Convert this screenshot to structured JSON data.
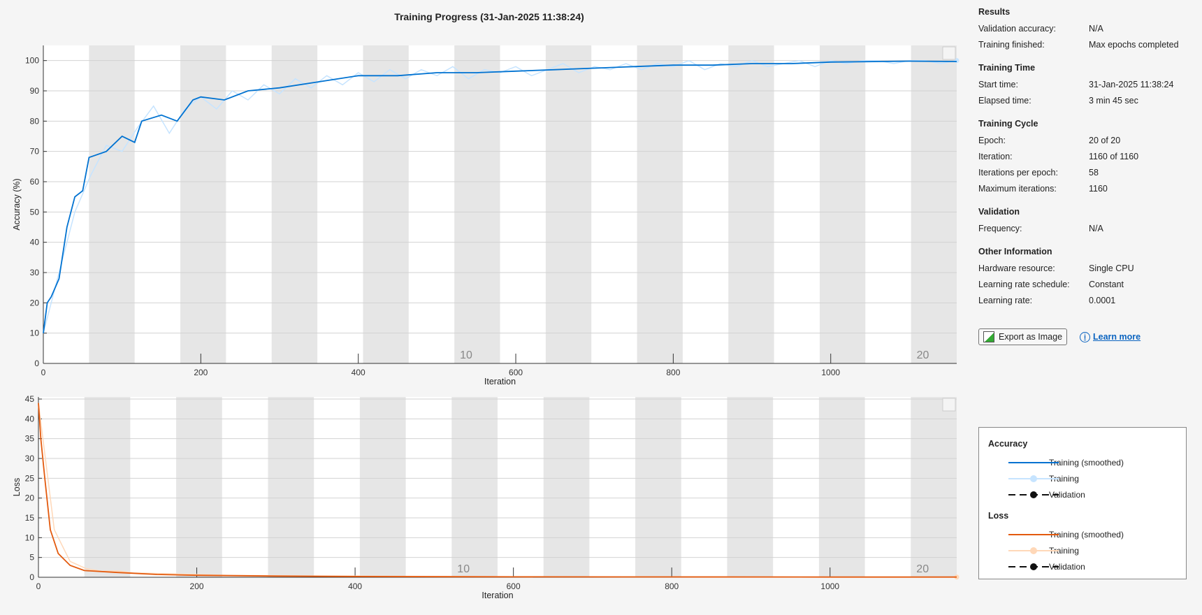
{
  "title": "Training Progress (31-Jan-2025 11:38:24)",
  "sidebar": {
    "sections": [
      {
        "heading": "Results",
        "rows": [
          [
            "Validation accuracy:",
            "N/A"
          ],
          [
            "Training finished:",
            "Max epochs completed"
          ]
        ]
      },
      {
        "heading": "Training Time",
        "rows": [
          [
            "Start time:",
            "31-Jan-2025 11:38:24"
          ],
          [
            "Elapsed time:",
            "3 min 45 sec"
          ]
        ]
      },
      {
        "heading": "Training Cycle",
        "rows": [
          [
            "Epoch:",
            "20 of 20"
          ],
          [
            "Iteration:",
            "1160 of 1160"
          ],
          [
            "Iterations per epoch:",
            "58"
          ],
          [
            "Maximum iterations:",
            "1160"
          ]
        ]
      },
      {
        "heading": "Validation",
        "rows": [
          [
            "Frequency:",
            "N/A"
          ]
        ]
      },
      {
        "heading": "Other Information",
        "rows": [
          [
            "Hardware resource:",
            "Single CPU"
          ],
          [
            "Learning rate schedule:",
            "Constant"
          ],
          [
            "Learning rate:",
            "0.0001"
          ]
        ]
      }
    ],
    "export_label": "Export as Image",
    "learn_more_label": "Learn more"
  },
  "legend": {
    "accuracy_heading": "Accuracy",
    "loss_heading": "Loss",
    "items": [
      "Training (smoothed)",
      "Training",
      "Validation"
    ]
  },
  "colors": {
    "acc_smooth": "#0072d1",
    "acc_raw": "#c6e4ff",
    "loss_smooth": "#e35a0e",
    "loss_raw": "#ffd8b8",
    "validation": "#111111",
    "epoch_band": "#e6e6e6"
  },
  "chart_data": [
    {
      "type": "line",
      "xlabel": "Iteration",
      "ylabel": "Accuracy (%)",
      "xlim": [
        0,
        1160
      ],
      "ylim": [
        0,
        105
      ],
      "xticks": [
        0,
        200,
        400,
        600,
        800,
        1000
      ],
      "yticks": [
        0,
        10,
        20,
        30,
        40,
        50,
        60,
        70,
        80,
        90,
        100
      ],
      "epoch_labels": [
        {
          "epoch": "10",
          "iteration": 522
        },
        {
          "epoch": "20",
          "iteration": 1102
        }
      ],
      "iterations_per_epoch": 58,
      "grid": "y",
      "series": [
        {
          "name": "Training",
          "x": [
            0,
            20,
            40,
            60,
            80,
            100,
            120,
            140,
            160,
            180,
            200,
            220,
            240,
            260,
            280,
            300,
            320,
            340,
            360,
            380,
            400,
            420,
            440,
            460,
            480,
            500,
            520,
            540,
            560,
            580,
            600,
            620,
            640,
            660,
            680,
            700,
            720,
            740,
            760,
            780,
            800,
            820,
            840,
            860,
            880,
            900,
            920,
            940,
            960,
            980,
            1000,
            1020,
            1040,
            1060,
            1080,
            1100,
            1120,
            1140,
            1160
          ],
          "y": [
            10,
            30,
            50,
            62,
            72,
            70,
            78,
            85,
            76,
            84,
            88,
            84,
            90,
            87,
            92,
            89,
            94,
            91,
            95,
            92,
            96,
            93,
            97,
            94,
            97,
            95,
            98,
            94,
            97,
            96,
            98,
            95,
            97,
            99,
            96,
            98,
            97,
            99,
            97,
            99,
            98,
            100,
            97,
            99,
            98,
            100,
            98,
            99,
            100,
            98,
            100,
            99,
            100,
            100,
            99,
            100,
            100,
            99,
            100
          ]
        },
        {
          "name": "Training (smoothed)",
          "x": [
            0,
            5,
            10,
            20,
            30,
            40,
            50,
            58,
            80,
            100,
            116,
            125,
            150,
            170,
            190,
            200,
            230,
            260,
            300,
            350,
            400,
            450,
            500,
            550,
            600,
            650,
            700,
            750,
            800,
            850,
            900,
            950,
            1000,
            1100,
            1160
          ],
          "y": [
            10,
            20,
            22,
            28,
            45,
            55,
            57,
            68,
            70,
            75,
            73,
            80,
            82,
            80,
            87,
            88,
            87,
            90,
            91,
            93,
            95,
            95,
            96,
            96,
            96.5,
            97,
            97.5,
            98,
            98.5,
            98.5,
            99,
            99,
            99.5,
            99.8,
            99.7
          ]
        }
      ]
    },
    {
      "type": "line",
      "xlabel": "Iteration",
      "ylabel": "Loss",
      "xlim": [
        0,
        1160
      ],
      "ylim": [
        0,
        45
      ],
      "xticks": [
        0,
        200,
        400,
        600,
        800,
        1000
      ],
      "yticks": [
        0,
        5,
        10,
        15,
        20,
        25,
        30,
        35,
        40,
        45
      ],
      "epoch_labels": [
        {
          "epoch": "10",
          "iteration": 522
        },
        {
          "epoch": "20",
          "iteration": 1102
        }
      ],
      "iterations_per_epoch": 58,
      "grid": "y",
      "series": [
        {
          "name": "Training",
          "x": [
            0,
            20,
            40,
            60,
            80,
            100,
            120,
            160,
            200,
            240,
            300,
            360,
            400,
            500,
            600,
            700,
            800,
            900,
            1000,
            1100,
            1160
          ],
          "y": [
            44,
            12,
            4,
            2.2,
            1.5,
            1.6,
            1.1,
            0.9,
            0.7,
            0.5,
            0.4,
            0.3,
            0.3,
            0.2,
            0.15,
            0.12,
            0.1,
            0.08,
            0.06,
            0.05,
            0.05
          ]
        },
        {
          "name": "Training (smoothed)",
          "x": [
            0,
            3,
            8,
            15,
            25,
            40,
            58,
            100,
            150,
            200,
            300,
            400,
            600,
            800,
            1000,
            1160
          ],
          "y": [
            44,
            35,
            25,
            12,
            6,
            3,
            1.7,
            1.2,
            0.7,
            0.5,
            0.3,
            0.2,
            0.1,
            0.08,
            0.06,
            0.05
          ]
        }
      ]
    }
  ]
}
